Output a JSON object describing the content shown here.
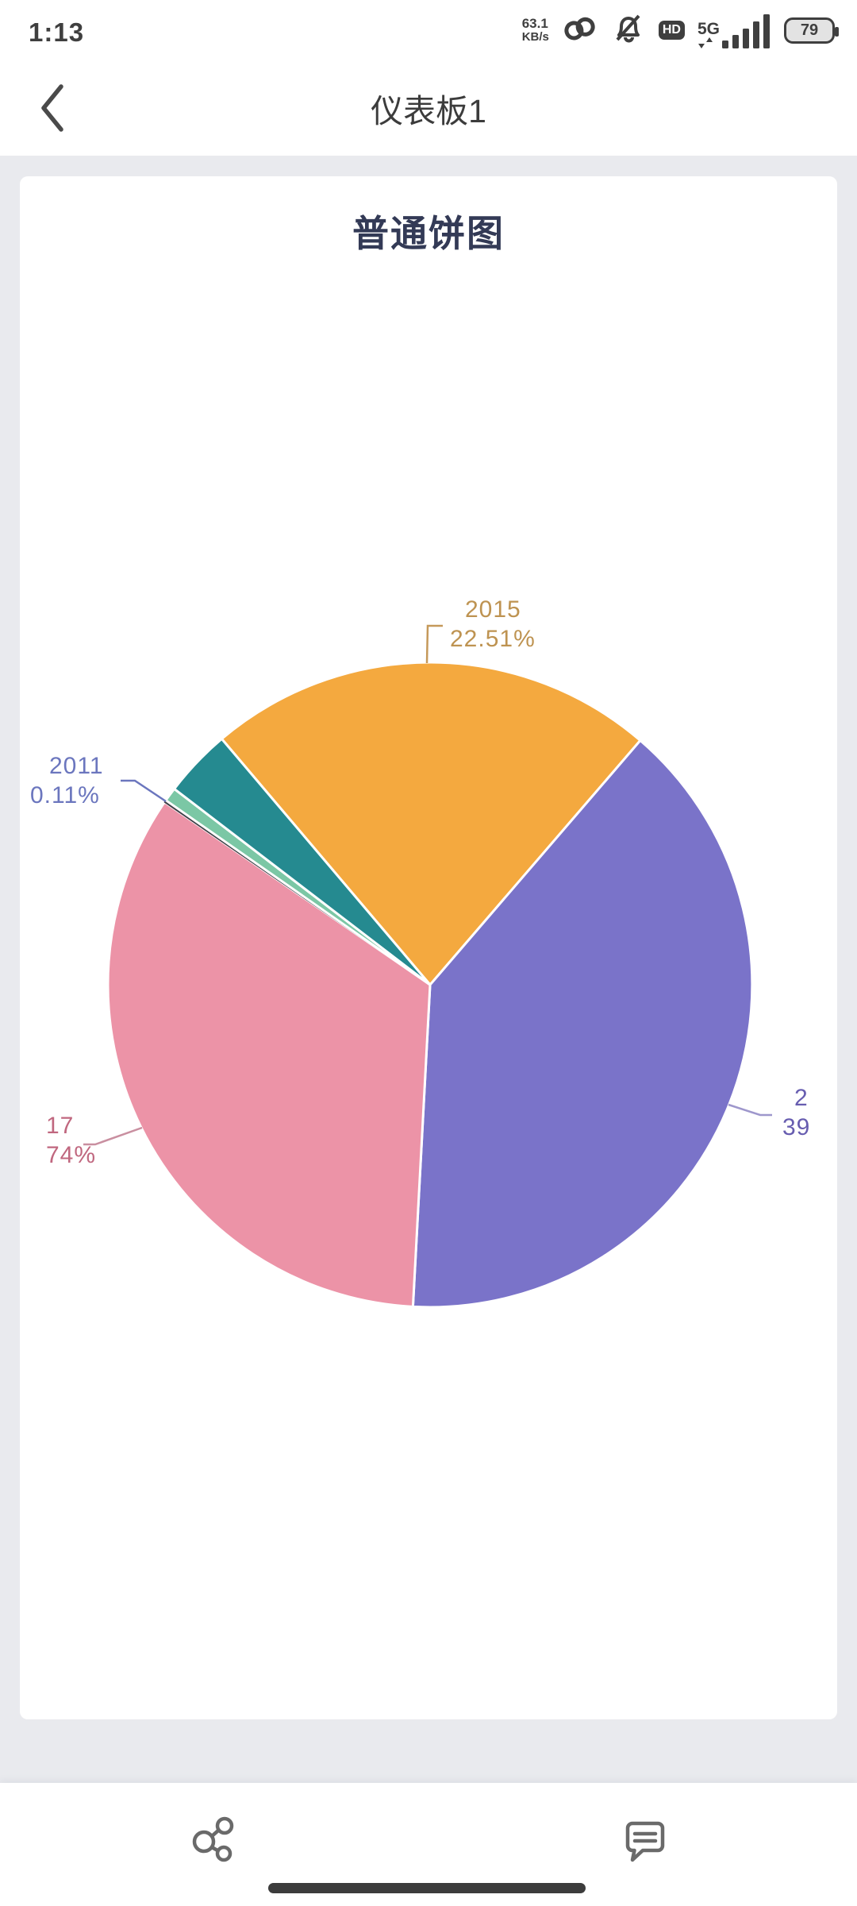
{
  "status_bar": {
    "time": "1:13",
    "network_speed_value": "63.1",
    "network_speed_unit": "KB/s",
    "hd_label": "HD",
    "network_type": "5G",
    "battery_percent": "79",
    "icons": [
      "link-icon",
      "bell-muted-icon",
      "hd-badge",
      "signal-bars-icon",
      "battery-icon"
    ]
  },
  "header": {
    "title": "仪表板1",
    "back_icon": "chevron-left-icon"
  },
  "chart_data": {
    "type": "pie",
    "title": "普通饼图",
    "title_color": "#333A56",
    "legend_position": "none",
    "start_angle_deg_clockwise_from_top": 319.7,
    "segments": [
      {
        "name": "2015",
        "percent": 22.51,
        "color": "#F4A93F",
        "label_lines": [
          "2015",
          "22.51%"
        ],
        "label_color": "#BE9351",
        "label_clipped": false
      },
      {
        "name": "",
        "percent": 39.53,
        "color": "#7A73C9",
        "label_lines": [
          "2",
          "39"
        ],
        "label_color": "#675DB0",
        "label_clipped": true
      },
      {
        "name": "",
        "percent": 33.74,
        "color": "#EC93A7",
        "label_lines": [
          "17",
          "74%"
        ],
        "label_color": "#C0677F",
        "label_clipped": true
      },
      {
        "name": "2011",
        "percent": 0.11,
        "color": "#3E3E46",
        "label_lines": [
          "2011",
          "0.11%"
        ],
        "label_color": "#6B76BE",
        "label_clipped": true
      },
      {
        "name": "",
        "percent": 0.7,
        "color": "#7BC7A5",
        "label_lines": [],
        "label_color": "",
        "label_clipped": false
      },
      {
        "name": "",
        "percent": 3.41,
        "color": "#258A90",
        "label_lines": [],
        "label_color": "",
        "label_clipped": false
      }
    ]
  },
  "footer": {
    "icons": [
      "share-icon",
      "comment-icon"
    ]
  }
}
